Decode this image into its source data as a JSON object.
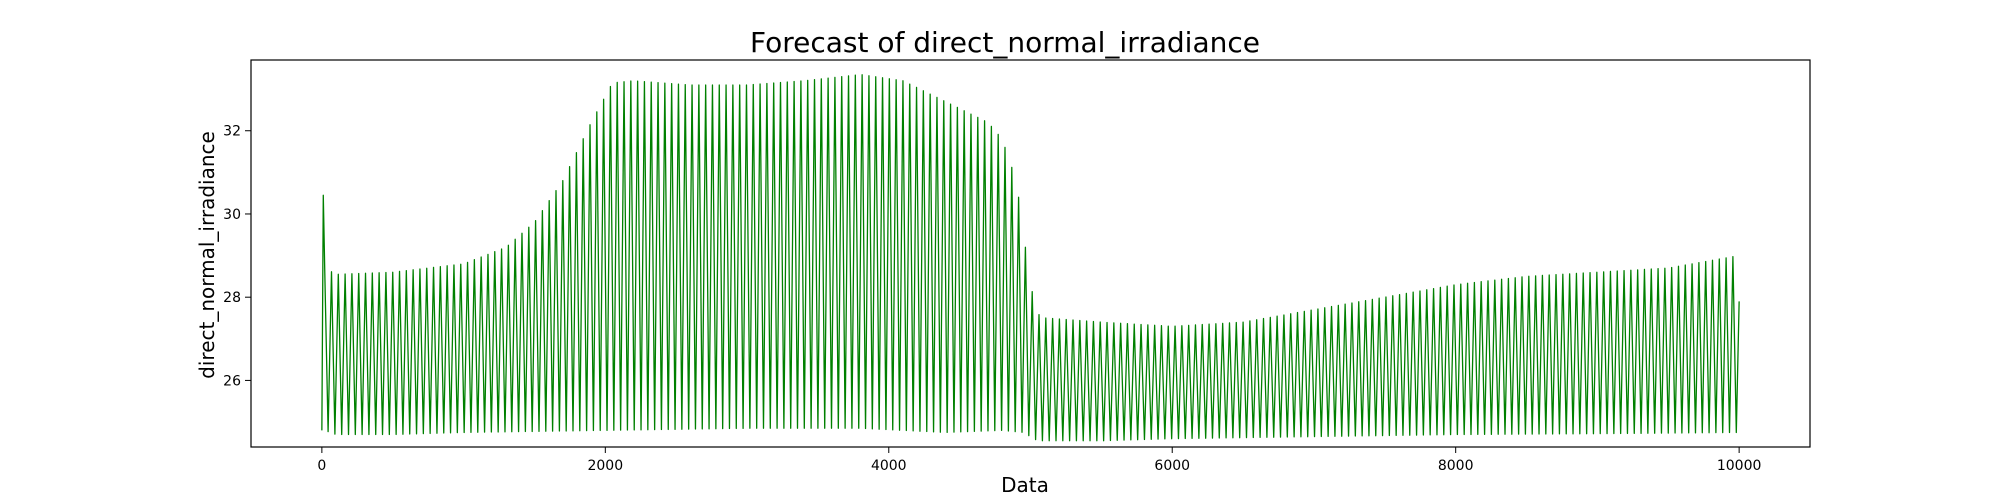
{
  "chart_data": {
    "type": "line",
    "title": "Forecast of direct_normal_irradiance",
    "xlabel": "Data",
    "ylabel": "direct_normal_irradiance",
    "xlim": [
      -500,
      10500
    ],
    "ylim": [
      24.4,
      33.7
    ],
    "xticks": [
      0,
      2000,
      4000,
      6000,
      8000,
      10000
    ],
    "xtick_labels": [
      "0",
      "2000",
      "4000",
      "6000",
      "8000",
      "10000"
    ],
    "yticks": [
      26,
      28,
      30,
      32
    ],
    "ytick_labels": [
      "26",
      "28",
      "30",
      "32"
    ],
    "grid": false,
    "legend": "none",
    "series": [
      {
        "color": "#008000",
        "oscillation_period": 48,
        "spike": {
          "x": 10,
          "y": 30.45
        },
        "upper_envelope": {
          "x": [
            20,
            100,
            500,
            1000,
            1300,
            1500,
            1700,
            1900,
            2050,
            2200,
            2600,
            3000,
            3400,
            3800,
            4100,
            4400,
            4700,
            4800,
            4900,
            5000,
            5050,
            5100,
            5500,
            6000,
            6500,
            7000,
            7500,
            8000,
            8500,
            9000,
            9500,
            10000
          ],
          "y": [
            28.7,
            28.55,
            28.6,
            28.8,
            29.2,
            29.8,
            30.8,
            32.2,
            33.15,
            33.2,
            33.1,
            33.1,
            33.2,
            33.35,
            33.2,
            32.7,
            32.2,
            31.8,
            30.8,
            28.3,
            27.6,
            27.5,
            27.4,
            27.3,
            27.4,
            27.7,
            28.0,
            28.3,
            28.5,
            28.6,
            28.7,
            29.0
          ]
        },
        "lower_envelope": {
          "x": [
            20,
            100,
            500,
            1000,
            2000,
            3000,
            3800,
            4400,
            4800,
            4950,
            5050,
            5500,
            6000,
            7000,
            8000,
            9000,
            10000
          ],
          "y": [
            24.8,
            24.7,
            24.7,
            24.75,
            24.8,
            24.85,
            24.85,
            24.75,
            24.8,
            24.75,
            24.55,
            24.55,
            24.6,
            24.65,
            24.7,
            24.72,
            24.75
          ]
        }
      }
    ]
  }
}
